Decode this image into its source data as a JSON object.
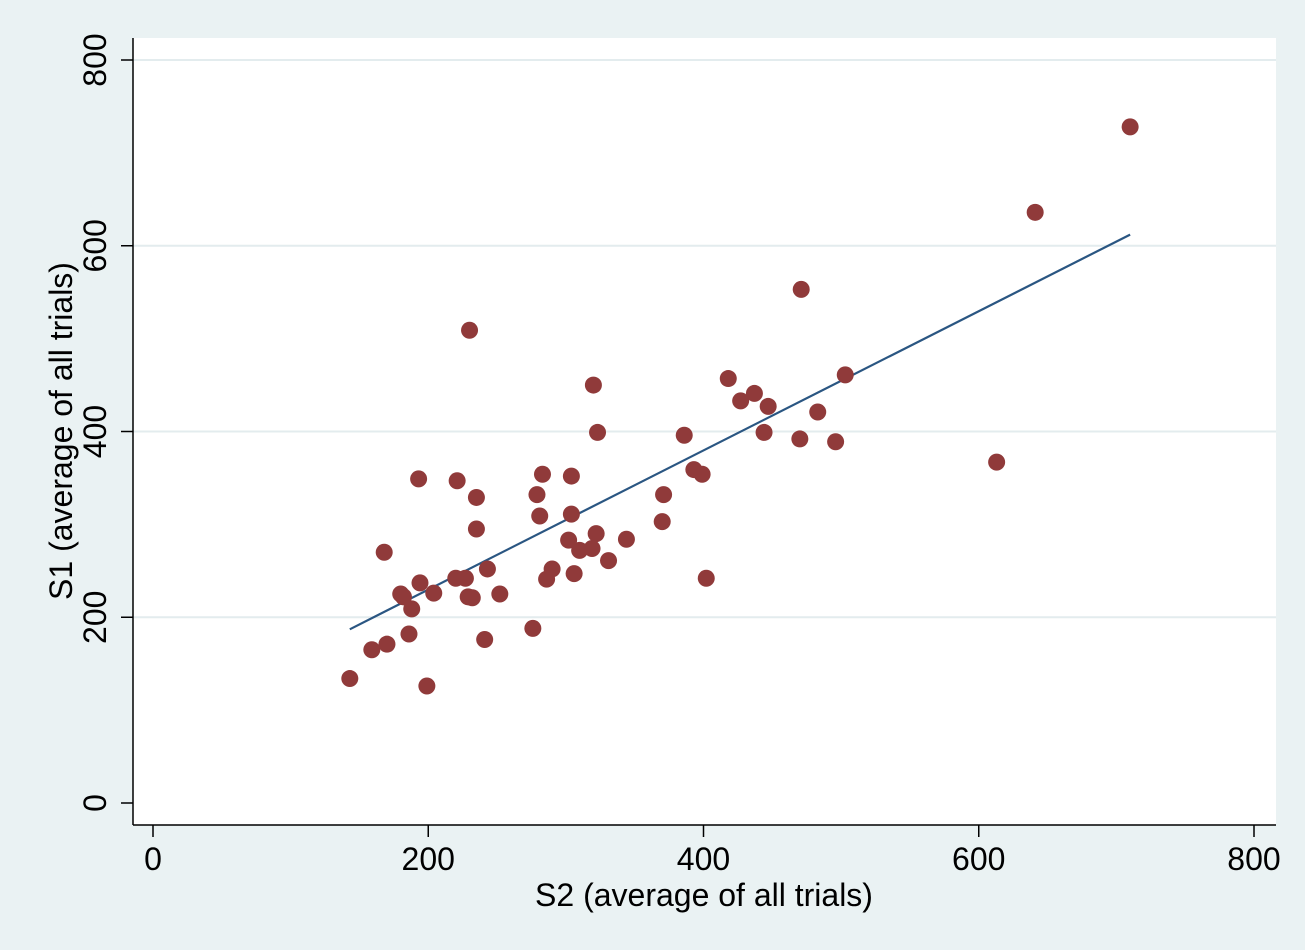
{
  "chart_data": {
    "type": "scatter",
    "xlabel": "S2 (average of all trials)",
    "ylabel": "S1 (average of all trials)",
    "xlim": [
      0,
      800
    ],
    "ylim": [
      0,
      800
    ],
    "x_ticks": [
      0,
      200,
      400,
      600,
      800
    ],
    "y_ticks": [
      0,
      200,
      400,
      600,
      800
    ],
    "x_tick_labels": [
      "0",
      "200",
      "400",
      "600",
      "800"
    ],
    "y_tick_labels": [
      "0",
      "200",
      "400",
      "600",
      "800"
    ],
    "grid": "horizontal",
    "legend": "none",
    "colors": {
      "background": "#eaf2f3",
      "plot_area": "#ffffff",
      "gridline": "#e3ecee",
      "marker": "#903a3a",
      "fit_line": "#2a5682",
      "axis": "#000000"
    },
    "series": [
      {
        "type": "scatter",
        "points": [
          [
            143,
            134
          ],
          [
            159,
            165
          ],
          [
            170,
            171
          ],
          [
            168,
            270
          ],
          [
            180,
            225
          ],
          [
            182,
            222
          ],
          [
            186,
            182
          ],
          [
            188,
            209
          ],
          [
            194,
            237
          ],
          [
            193,
            349
          ],
          [
            199,
            126
          ],
          [
            204,
            226
          ],
          [
            220,
            242
          ],
          [
            221,
            347
          ],
          [
            227,
            242
          ],
          [
            230,
            509
          ],
          [
            229,
            222
          ],
          [
            232,
            221
          ],
          [
            235,
            329
          ],
          [
            235,
            295
          ],
          [
            241,
            176
          ],
          [
            243,
            252
          ],
          [
            252,
            225
          ],
          [
            276,
            188
          ],
          [
            279,
            332
          ],
          [
            281,
            309
          ],
          [
            283,
            354
          ],
          [
            286,
            241
          ],
          [
            290,
            252
          ],
          [
            302,
            283
          ],
          [
            304,
            311
          ],
          [
            304,
            352
          ],
          [
            306,
            247
          ],
          [
            310,
            272
          ],
          [
            319,
            274
          ],
          [
            320,
            450
          ],
          [
            322,
            290
          ],
          [
            323,
            399
          ],
          [
            331,
            261
          ],
          [
            344,
            284
          ],
          [
            370,
            303
          ],
          [
            371,
            332
          ],
          [
            386,
            396
          ],
          [
            393,
            359
          ],
          [
            399,
            354
          ],
          [
            402,
            242
          ],
          [
            418,
            457
          ],
          [
            427,
            433
          ],
          [
            437,
            441
          ],
          [
            444,
            399
          ],
          [
            447,
            427
          ],
          [
            470,
            392
          ],
          [
            471,
            553
          ],
          [
            483,
            421
          ],
          [
            496,
            389
          ],
          [
            503,
            461
          ],
          [
            613,
            367
          ],
          [
            641,
            636
          ],
          [
            710,
            728
          ]
        ]
      },
      {
        "type": "line",
        "points": [
          [
            143,
            187
          ],
          [
            710,
            612
          ]
        ]
      }
    ]
  }
}
